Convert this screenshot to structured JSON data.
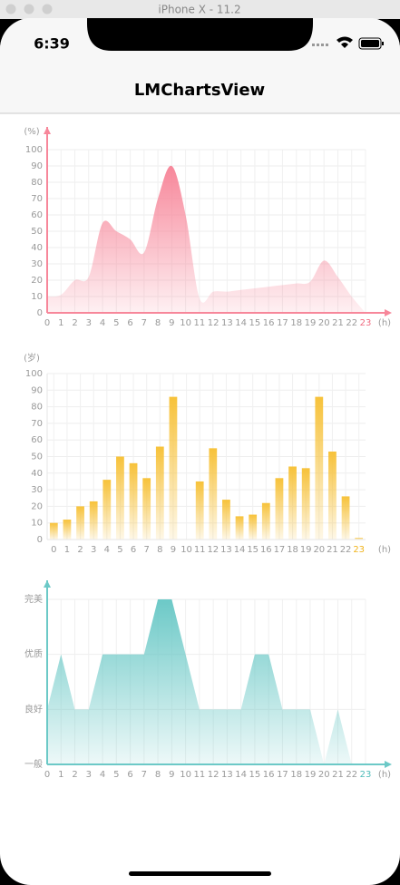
{
  "window": {
    "title": "iPhone X - 11.2"
  },
  "status_bar": {
    "time": "6:39"
  },
  "nav_title": "LMChartsView",
  "chart_data": [
    {
      "type": "area",
      "smooth": true,
      "color": "#f7879a",
      "axis_color": "#f7879a",
      "arrows": true,
      "last_label_color": "#f06a80",
      "grid": true,
      "y_unit": "(%)",
      "x_unit": "(h)",
      "x": [
        0,
        1,
        2,
        3,
        4,
        5,
        6,
        7,
        8,
        9,
        10,
        11,
        12,
        13,
        14,
        15,
        16,
        17,
        18,
        19,
        20,
        21,
        22,
        23
      ],
      "values": [
        10,
        11,
        20,
        22,
        55,
        50,
        45,
        37,
        70,
        90,
        60,
        9,
        13,
        13,
        14,
        15,
        16,
        17,
        18,
        19,
        32,
        22,
        10,
        0
      ],
      "xlim": [
        0,
        23
      ],
      "ylim": [
        0,
        100
      ],
      "yticks": [
        0,
        10,
        20,
        30,
        40,
        50,
        60,
        70,
        80,
        90,
        100
      ]
    },
    {
      "type": "bar",
      "color": "#f7c23a",
      "axis_color": "#e6e6e6",
      "arrows": false,
      "last_label_color": "#f0b41e",
      "grid": true,
      "y_unit": "(岁)",
      "x_unit": "(h)",
      "categories": [
        "0",
        "1",
        "2",
        "3",
        "4",
        "5",
        "6",
        "7",
        "8",
        "9",
        "10",
        "11",
        "12",
        "13",
        "14",
        "15",
        "16",
        "17",
        "18",
        "19",
        "20",
        "21",
        "22",
        "23"
      ],
      "values": [
        10,
        12,
        20,
        23,
        36,
        50,
        46,
        37,
        56,
        86,
        0,
        35,
        55,
        24,
        14,
        15,
        22,
        37,
        44,
        43,
        86,
        53,
        26,
        1
      ],
      "ylim": [
        0,
        100
      ],
      "yticks": [
        0,
        10,
        20,
        30,
        40,
        50,
        60,
        70,
        80,
        90,
        100
      ]
    },
    {
      "type": "area",
      "smooth": false,
      "color": "#6cc9c7",
      "axis_color": "#6cc9c7",
      "arrows": true,
      "last_label_color": "#4fbcb9",
      "grid": true,
      "x_unit": "(h)",
      "x": [
        0,
        1,
        2,
        3,
        4,
        5,
        6,
        7,
        8,
        9,
        10,
        11,
        12,
        13,
        14,
        15,
        16,
        17,
        18,
        19,
        20,
        21,
        22,
        23
      ],
      "values": [
        1,
        2,
        1,
        1,
        2,
        2,
        2,
        2,
        3,
        3,
        2,
        1,
        1,
        1,
        1,
        2,
        2,
        1,
        1,
        1,
        0,
        1,
        0,
        0
      ],
      "xlim": [
        0,
        23
      ],
      "ylim": [
        0,
        3
      ],
      "yticks": [
        {
          "value": 0,
          "label": "一般"
        },
        {
          "value": 1,
          "label": "良好"
        },
        {
          "value": 2,
          "label": "优质"
        },
        {
          "value": 3,
          "label": "完美"
        }
      ]
    }
  ]
}
